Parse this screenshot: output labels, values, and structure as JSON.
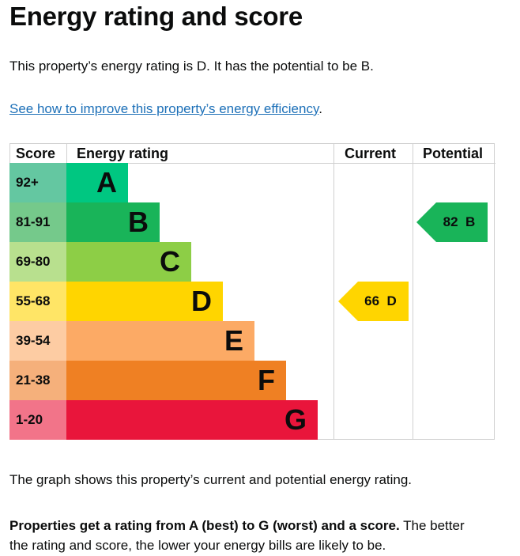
{
  "title": "Energy rating and score",
  "intro": "This property’s energy rating is D. It has the potential to be B.",
  "link": {
    "text": "See how to improve this property’s energy efficiency",
    "suffix": "."
  },
  "table": {
    "headers": {
      "score": "Score",
      "rating": "Energy rating",
      "current": "Current",
      "potential": "Potential"
    },
    "bands": [
      {
        "score": "92+",
        "letter": "A",
        "color": "#00c781",
        "score_color": "#64c7a1"
      },
      {
        "score": "81-91",
        "letter": "B",
        "color": "#19b459",
        "score_color": "#75c98b"
      },
      {
        "score": "69-80",
        "letter": "C",
        "color": "#8dce46",
        "score_color": "#b8e08e"
      },
      {
        "score": "55-68",
        "letter": "D",
        "color": "#ffd500",
        "score_color": "#ffe566"
      },
      {
        "score": "39-54",
        "letter": "E",
        "color": "#fcaa65",
        "score_color": "#fdcca3"
      },
      {
        "score": "21-38",
        "letter": "F",
        "color": "#ef8023",
        "score_color": "#f5b07b"
      },
      {
        "score": "1-20",
        "letter": "G",
        "color": "#e9153b",
        "score_color": "#f27489"
      }
    ],
    "current": {
      "score": "66",
      "letter": "D",
      "color": "#ffd500"
    },
    "potential": {
      "score": "82",
      "letter": "B",
      "color": "#19b459"
    }
  },
  "note": "The graph shows this property’s current and potential energy rating.",
  "summary": {
    "bold": "Properties get a rating from A (best) to G (worst) and a score.",
    "rest1": " The better",
    "rest2": "the rating and score, the lower your energy bills are likely to be."
  }
}
